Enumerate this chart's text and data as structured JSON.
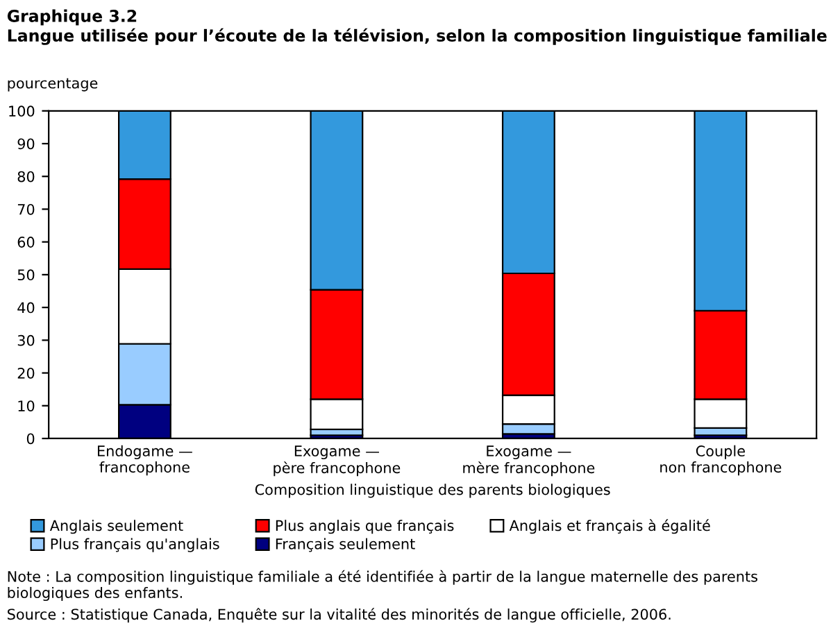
{
  "chart_data": {
    "type": "bar",
    "stacked": true,
    "title": "Graphique 3.2",
    "subtitle": "Langue utilisée pour l’écoute de la télévision, selon la composition linguistique familiale",
    "ylabel": "pourcentage",
    "xlabel": "Composition linguistique des parents biologiques",
    "categories": [
      "Endogame —\nfrancophone",
      "Exogame —\npère francophone",
      "Exogame —\nmère francophone",
      "Couple\nnon francophone"
    ],
    "series": [
      {
        "name": "Français seulement",
        "color": "#000080",
        "values": [
          10.3,
          1.0,
          1.4,
          1.0
        ]
      },
      {
        "name": "Plus français qu'anglais",
        "color": "#99ccff",
        "values": [
          18.6,
          1.8,
          3.0,
          2.2
        ]
      },
      {
        "name": "Anglais et français à égalité",
        "color": "#ffffff",
        "values": [
          22.8,
          9.2,
          8.8,
          8.8
        ]
      },
      {
        "name": "Plus anglais que français",
        "color": "#ff0000",
        "values": [
          27.5,
          33.4,
          37.2,
          27.0
        ]
      },
      {
        "name": "Anglais seulement",
        "color": "#3399dd",
        "values": [
          20.8,
          54.6,
          49.6,
          61.0
        ]
      }
    ],
    "ylim": [
      0,
      100
    ],
    "yticks": [
      0,
      10,
      20,
      30,
      40,
      50,
      60,
      70,
      80,
      90,
      100
    ],
    "grid": false,
    "legend": "bottom",
    "annotations": [
      "Note : La composition linguistique familiale a été identifiée à partir de la langue maternelle des parents biologiques des enfants.",
      "Source : Statistique Canada, Enquête sur la vitalité des minorités de langue officielle, 2006."
    ]
  }
}
